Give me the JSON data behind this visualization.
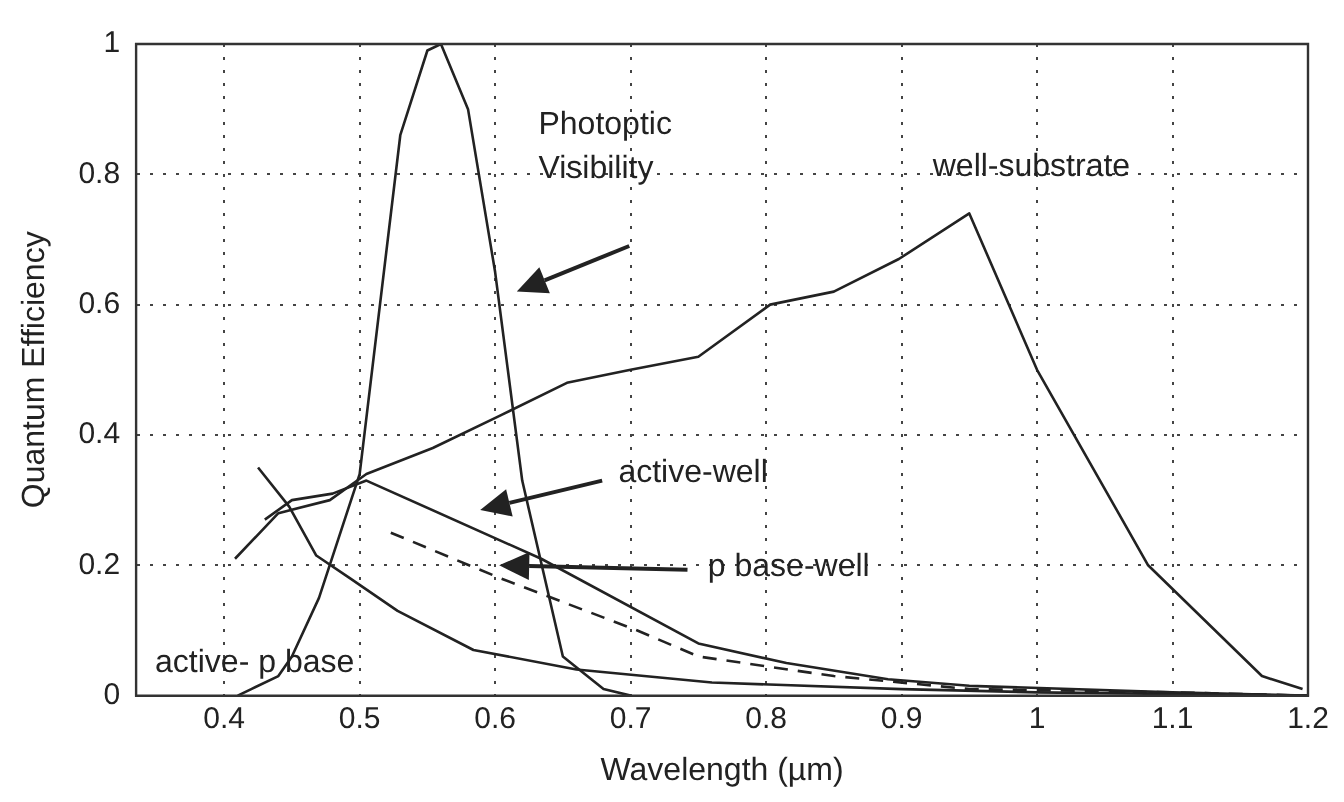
{
  "chart_data": {
    "type": "line",
    "xlabel": "Wavelength (µm)",
    "ylabel": "Quantum Efficiency",
    "xlim": [
      0.335,
      1.2
    ],
    "xticks": [
      0.4,
      0.5,
      0.6,
      0.7,
      0.8,
      0.9,
      1,
      1.1,
      1.2
    ],
    "ylim": [
      0,
      1
    ],
    "yticks": [
      0,
      0.2,
      0.4,
      0.6,
      0.8,
      1
    ],
    "grid": true,
    "legend": false,
    "marker": "none",
    "series": [
      {
        "color": "#222222",
        "line_style": "solid",
        "x": [
          0.41,
          0.42,
          0.44,
          0.45,
          0.47,
          0.5,
          0.53,
          0.55,
          0.56,
          0.58,
          0.6,
          0.62,
          0.65,
          0.68,
          0.7
        ],
        "values": [
          0,
          0.01,
          0.03,
          0.06,
          0.15,
          0.34,
          0.86,
          0.99,
          1,
          0.9,
          0.65,
          0.33,
          0.06,
          0.01,
          0
        ]
      },
      {
        "color": "#222222",
        "line_style": "solid",
        "x": [
          0.408,
          0.44,
          0.478,
          0.505,
          0.554,
          0.604,
          0.653,
          0.7,
          0.75,
          0.803,
          0.85,
          0.898,
          0.95,
          1,
          1.082,
          1.166,
          1.196
        ],
        "values": [
          0.21,
          0.28,
          0.3,
          0.34,
          0.38,
          0.43,
          0.48,
          0.5,
          0.52,
          0.6,
          0.62,
          0.67,
          0.74,
          0.5,
          0.2,
          0.03,
          0.01
        ]
      },
      {
        "color": "#222222",
        "line_style": "solid",
        "x": [
          0.43,
          0.45,
          0.48,
          0.505,
          0.634,
          0.75,
          0.815,
          0.89,
          0.95,
          1.1,
          1.2
        ],
        "values": [
          0.27,
          0.3,
          0.31,
          0.33,
          0.21,
          0.08,
          0.05,
          0.025,
          0.015,
          0.005,
          0
        ]
      },
      {
        "color": "#222222",
        "line_style": "dashed",
        "x": [
          0.523,
          0.604,
          0.705,
          0.75,
          0.85,
          0.95,
          1.1,
          1.2
        ],
        "values": [
          0.25,
          0.18,
          0.1,
          0.06,
          0.03,
          0.01,
          0.005,
          0
        ]
      },
      {
        "color": "#222222",
        "line_style": "solid",
        "x": [
          0.425,
          0.448,
          0.468,
          0.493,
          0.528,
          0.584,
          0.66,
          0.76,
          0.9,
          1,
          1.2
        ],
        "values": [
          0.35,
          0.29,
          0.215,
          0.18,
          0.13,
          0.07,
          0.04,
          0.02,
          0.01,
          0.005,
          0
        ]
      }
    ],
    "annotations": [
      "Photoptic Visibility",
      "well-substrate",
      "active-well",
      "p base-well",
      "active- p base"
    ]
  }
}
